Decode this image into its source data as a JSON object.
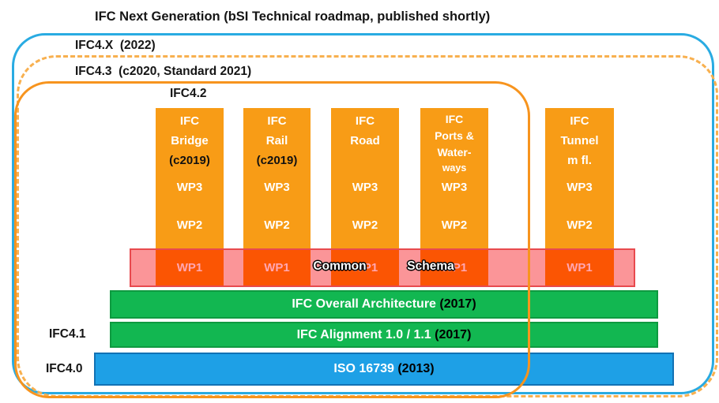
{
  "title": "IFC Next Generation (bSI Technical roadmap, published shortly)",
  "frames": {
    "ifc4x_label": "IFC4.X  (2022)",
    "ifc43_label": "IFC4.3  (c2020, Standard 2021)",
    "ifc42_label": "IFC4.2"
  },
  "columns": [
    {
      "lines": [
        "IFC",
        "Bridge"
      ],
      "year": "(c2019)",
      "wp3": "WP3",
      "wp2": "WP2",
      "wp1": "WP1"
    },
    {
      "lines": [
        "IFC",
        "Rail"
      ],
      "year": "(c2019)",
      "wp3": "WP3",
      "wp2": "WP2",
      "wp1": "WP1"
    },
    {
      "lines": [
        "IFC",
        "Road"
      ],
      "year": "",
      "wp3": "WP3",
      "wp2": "WP2",
      "wp1": "WP1"
    },
    {
      "lines": [
        "IFC",
        "Ports &",
        "Water-",
        "ways"
      ],
      "year": "",
      "wp3": "WP3",
      "wp2": "WP2",
      "wp1": "WP1"
    },
    {
      "lines": [
        "IFC",
        "Tunnel",
        "m fl."
      ],
      "year": "",
      "wp3": "WP3",
      "wp2": "WP2",
      "wp1": "WP1"
    }
  ],
  "band": {
    "word_left": "Common",
    "word_right": "Schema"
  },
  "bars": [
    {
      "name": "IFC Overall Architecture ",
      "year": "(2017)",
      "side_label": "",
      "type": "green"
    },
    {
      "name": "IFC Alignment 1.0 / 1.1 ",
      "year": "(2017)",
      "side_label": "IFC4.1",
      "type": "green"
    },
    {
      "name": "ISO 16739 ",
      "year": "(2013)",
      "side_label": "IFC4.0",
      "type": "blue"
    }
  ],
  "colors": {
    "frame_blue": "#29ABE2",
    "frame_orange": "#F7941E",
    "frame_dashed": "#F8B04F",
    "column_orange": "#F89C16",
    "wp1_overlap_red": "#FB5503",
    "band_pink": "#FB9598",
    "band_border_red": "#E84A4E",
    "green_bar": "#12B751",
    "green_bar_border": "#0E9A40",
    "blue_bar": "#1EA0E6",
    "blue_bar_border": "#1272B4"
  }
}
